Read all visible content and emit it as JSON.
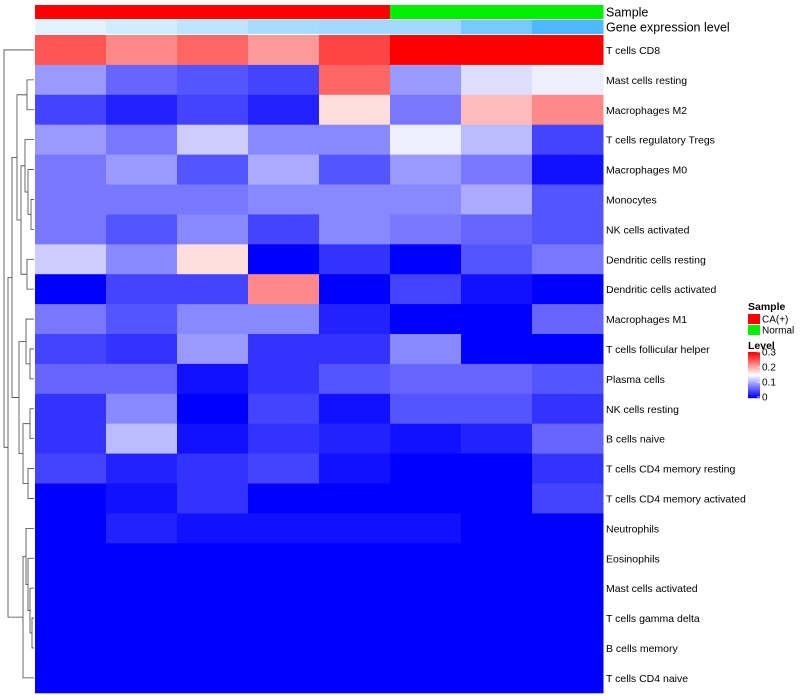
{
  "chart_data": {
    "type": "heatmap",
    "annotation_labels": [
      "Sample",
      "Gene expression level"
    ],
    "sample_groups": [
      "CA(+)",
      "CA(+)",
      "CA(+)",
      "CA(+)",
      "CA(+)",
      "Normal",
      "Normal",
      "Normal"
    ],
    "expression_level": [
      0.02,
      0.05,
      0.08,
      0.12,
      0.13,
      0.13,
      0.2,
      0.27
    ],
    "rows": [
      "T cells CD8",
      "Mast cells resting",
      "Macrophages M2",
      "T cells regulatory  Tregs",
      "Macrophages M0",
      "Monocytes",
      "NK cells activated",
      "Dendritic cells resting",
      "Dendritic cells activated",
      "Macrophages M1",
      "T cells follicular helper",
      "Plasma cells",
      "NK cells resting",
      "B cells naive",
      "T cells CD4 memory resting",
      "T cells CD4 memory activated",
      "Neutrophils",
      "Eosinophils",
      "Mast cells activated",
      "T cells gamma delta",
      "B cells memory",
      "T cells CD4 naive"
    ],
    "values": [
      [
        0.25,
        0.22,
        0.24,
        0.21,
        0.26,
        0.3,
        0.3,
        0.3
      ],
      [
        0.09,
        0.06,
        0.05,
        0.04,
        0.24,
        0.09,
        0.13,
        0.14
      ],
      [
        0.04,
        0.02,
        0.04,
        0.02,
        0.17,
        0.07,
        0.19,
        0.22
      ],
      [
        0.09,
        0.07,
        0.12,
        0.08,
        0.08,
        0.14,
        0.11,
        0.04
      ],
      [
        0.07,
        0.09,
        0.05,
        0.1,
        0.05,
        0.09,
        0.07,
        0.01
      ],
      [
        0.07,
        0.07,
        0.07,
        0.08,
        0.08,
        0.08,
        0.1,
        0.05
      ],
      [
        0.07,
        0.05,
        0.08,
        0.04,
        0.08,
        0.07,
        0.06,
        0.05
      ],
      [
        0.12,
        0.08,
        0.17,
        0.0,
        0.03,
        0.0,
        0.05,
        0.07
      ],
      [
        0.0,
        0.04,
        0.04,
        0.22,
        0.0,
        0.04,
        0.01,
        0.0
      ],
      [
        0.07,
        0.05,
        0.08,
        0.08,
        0.02,
        0.0,
        0.0,
        0.06
      ],
      [
        0.04,
        0.03,
        0.09,
        0.03,
        0.03,
        0.08,
        0.0,
        0.0
      ],
      [
        0.06,
        0.06,
        0.01,
        0.03,
        0.05,
        0.06,
        0.06,
        0.05
      ],
      [
        0.03,
        0.08,
        0.0,
        0.04,
        0.01,
        0.05,
        0.05,
        0.03
      ],
      [
        0.03,
        0.11,
        0.01,
        0.03,
        0.02,
        0.01,
        0.02,
        0.06
      ],
      [
        0.04,
        0.02,
        0.03,
        0.04,
        0.01,
        0.0,
        0.0,
        0.03
      ],
      [
        0.0,
        0.01,
        0.03,
        0.0,
        0.0,
        0.0,
        0.0,
        0.04
      ],
      [
        0.0,
        0.02,
        0.01,
        0.01,
        0.01,
        0.01,
        0.0,
        0.0
      ],
      [
        0.0,
        0.0,
        0.0,
        0.0,
        0.0,
        0.0,
        0.0,
        0.0
      ],
      [
        0.0,
        0.0,
        0.0,
        0.0,
        0.0,
        0.0,
        0.0,
        0.0
      ],
      [
        0.0,
        0.0,
        0.0,
        0.0,
        0.0,
        0.0,
        0.0,
        0.0
      ],
      [
        0.0,
        0.0,
        0.0,
        0.0,
        0.0,
        0.0,
        0.0,
        0.0
      ],
      [
        0.0,
        0.0,
        0.0,
        0.0,
        0.0,
        0.0,
        0.0,
        0.0
      ]
    ],
    "range": [
      0,
      0.3
    ],
    "colors": {
      "low": "#0000ff",
      "mid": "#ffffff",
      "high": "#ff0000",
      "mid_value": 0.15
    },
    "annotation_colors": {
      "sample": {
        "CA(+)": "#ff0000",
        "Normal": "#00ee00"
      },
      "expression_level": {
        "low": "#ffffff",
        "high": "#4fb8ff"
      }
    },
    "legend": {
      "sample_title": "Sample",
      "sample_entries": [
        "CA(+)",
        "Normal"
      ],
      "level_title": "Level",
      "level_ticks": [
        "0.3",
        "0.2",
        "0.1",
        "0"
      ],
      "level_tick_values": [
        0.3,
        0.2,
        0.1,
        0.0
      ]
    },
    "dendrogram": "row"
  }
}
